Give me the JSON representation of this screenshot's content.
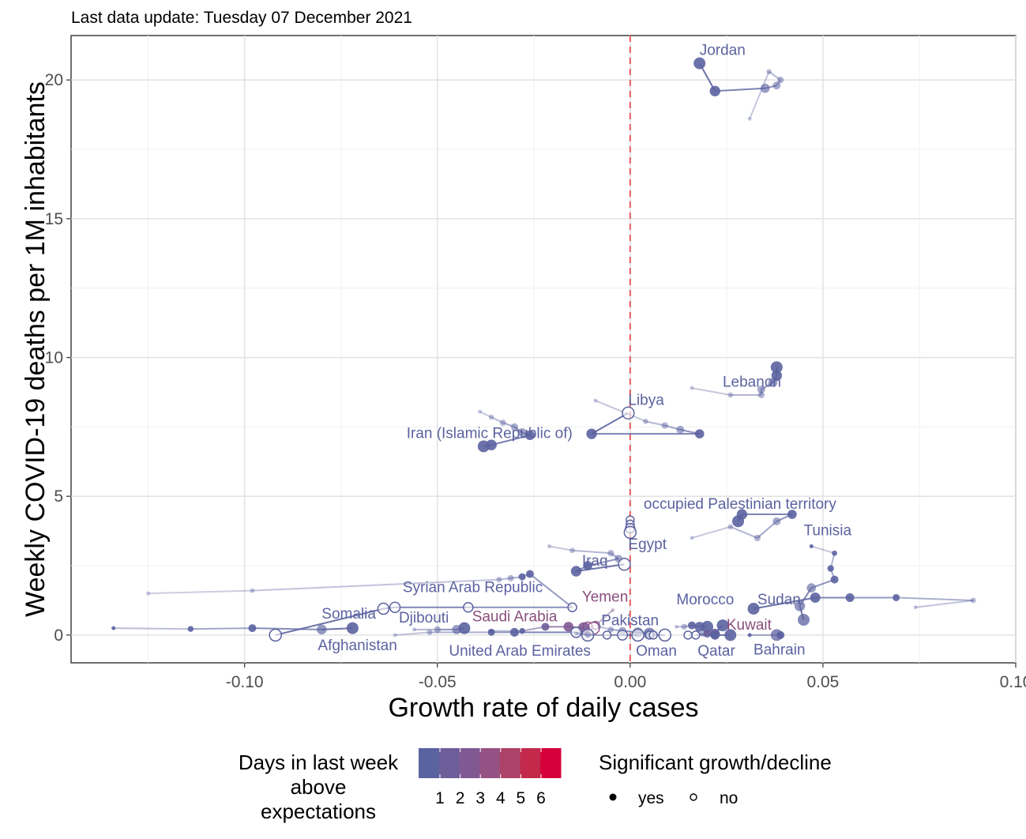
{
  "subtitle": "Last data update: Tuesday 07 December 2021",
  "chart_data": {
    "type": "scatter",
    "xlabel": "Growth rate of daily cases",
    "ylabel": "Weekly COVID-19 deaths per 1M inhabitants",
    "xlim": [
      -0.145,
      0.1
    ],
    "ylim": [
      -1.0,
      21.6
    ],
    "x_ticks": [
      -0.1,
      -0.05,
      0.0,
      0.05,
      0.1
    ],
    "x_tick_labels": [
      "-0.10",
      "-0.05",
      "0.00",
      "0.05",
      "0.10"
    ],
    "y_ticks": [
      0,
      5,
      10,
      15,
      20
    ],
    "y_tick_labels": [
      "0",
      "5",
      "10",
      "15",
      "20"
    ],
    "grid": true,
    "reference_line": {
      "x": 0,
      "style": "dashed",
      "color": "#e8696a"
    },
    "series": [
      {
        "name": "Jordan",
        "label_pos": [
          0.018,
          20.9
        ],
        "label_color": "#5b62a0",
        "points": [
          [
            0.031,
            18.6,
            0,
            0
          ],
          [
            0.036,
            20.3,
            0,
            0
          ],
          [
            0.039,
            20.0,
            0,
            0
          ],
          [
            0.038,
            19.8,
            0,
            0
          ],
          [
            0.035,
            19.7,
            0,
            0
          ],
          [
            0.022,
            19.6,
            0,
            1
          ],
          [
            0.018,
            20.6,
            0,
            1
          ]
        ]
      },
      {
        "name": "Lebanon",
        "label_pos": [
          0.024,
          8.95
        ],
        "label_color": "#5b62a0",
        "points": [
          [
            0.016,
            8.9,
            0,
            0
          ],
          [
            0.026,
            8.65,
            0,
            0
          ],
          [
            0.034,
            8.65,
            0,
            0
          ],
          [
            0.034,
            8.85,
            0,
            0
          ],
          [
            0.037,
            9.1,
            0,
            0
          ],
          [
            0.038,
            9.35,
            0,
            1
          ],
          [
            0.038,
            9.65,
            0,
            1
          ]
        ]
      },
      {
        "name": "Libya",
        "label_pos": [
          -0.0005,
          8.3
        ],
        "label_color": "#5b62a0",
        "points": [
          [
            -0.009,
            8.45,
            0,
            0
          ],
          [
            0.004,
            7.7,
            0,
            0
          ],
          [
            0.009,
            7.55,
            0,
            0
          ],
          [
            0.013,
            7.4,
            0,
            0
          ],
          [
            0.018,
            7.25,
            0,
            1
          ],
          [
            -0.01,
            7.25,
            0,
            1
          ],
          [
            -0.0005,
            8.0,
            0,
            2
          ]
        ]
      },
      {
        "name": "Iran (Islamic Republic of)",
        "label_pos": [
          -0.058,
          7.1
        ],
        "label_color": "#5b62a0",
        "points": [
          [
            -0.039,
            8.05,
            0,
            0
          ],
          [
            -0.036,
            7.85,
            0,
            0
          ],
          [
            -0.033,
            7.65,
            0,
            0
          ],
          [
            -0.03,
            7.5,
            0,
            0
          ],
          [
            -0.028,
            7.3,
            0,
            0
          ],
          [
            -0.026,
            7.2,
            0,
            1
          ],
          [
            -0.036,
            6.85,
            0,
            1
          ],
          [
            -0.038,
            6.8,
            0,
            1
          ]
        ]
      },
      {
        "name": "occupied Palestinian territory",
        "label_pos": [
          0.0035,
          4.55
        ],
        "label_color": "#5b62a0",
        "points": [
          [
            0.016,
            3.5,
            0,
            0
          ],
          [
            0.026,
            3.9,
            0,
            0
          ],
          [
            0.033,
            3.5,
            0,
            0
          ],
          [
            0.038,
            4.1,
            0,
            0
          ],
          [
            0.042,
            4.35,
            0,
            1
          ],
          [
            0.029,
            4.35,
            0,
            1
          ],
          [
            0.028,
            4.1,
            0,
            1
          ]
        ]
      },
      {
        "name": "Egypt",
        "label_pos": [
          -0.0005,
          3.1
        ],
        "label_color": "#5b62a0",
        "points": [
          [
            0.0,
            4.15,
            0,
            2
          ],
          [
            0.0,
            4.0,
            0,
            2
          ],
          [
            0.0,
            3.85,
            0,
            2
          ],
          [
            0.0,
            3.7,
            0,
            2
          ]
        ]
      },
      {
        "name": "Tunisia",
        "label_pos": [
          0.045,
          3.6
        ],
        "label_color": "#5b62a0",
        "points": [
          [
            0.047,
            3.2,
            0,
            1
          ],
          [
            0.053,
            2.95,
            0,
            1
          ],
          [
            0.052,
            2.4,
            0,
            1
          ],
          [
            0.053,
            2.0,
            0,
            1
          ],
          [
            0.047,
            1.7,
            0,
            0
          ],
          [
            0.044,
            1.05,
            0,
            0
          ],
          [
            0.045,
            0.55,
            0,
            0
          ]
        ]
      },
      {
        "name": "Iraq",
        "label_pos": [
          -0.0125,
          2.5
        ],
        "label_color": "#5b62a0",
        "points": [
          [
            -0.021,
            3.2,
            0,
            0
          ],
          [
            -0.015,
            3.05,
            0,
            0
          ],
          [
            -0.005,
            2.95,
            0,
            0
          ],
          [
            -0.003,
            2.75,
            0,
            0
          ],
          [
            -0.011,
            2.5,
            0,
            1
          ],
          [
            -0.014,
            2.3,
            0,
            1
          ],
          [
            -0.0015,
            2.55,
            0,
            2
          ]
        ]
      },
      {
        "name": "Syrian Arab Republic",
        "label_pos": [
          -0.059,
          1.55
        ],
        "label_color": "#5b62a0",
        "points": [
          [
            -0.125,
            1.5,
            0,
            0
          ],
          [
            -0.098,
            1.6,
            0,
            0
          ],
          [
            -0.034,
            2.0,
            0,
            0
          ],
          [
            -0.031,
            2.05,
            0,
            0
          ],
          [
            -0.028,
            2.1,
            0,
            1
          ],
          [
            -0.026,
            2.2,
            0,
            1
          ],
          [
            -0.015,
            1.0,
            0,
            2
          ],
          [
            -0.042,
            1.0,
            0,
            2
          ],
          [
            -0.061,
            1.0,
            0,
            2
          ],
          [
            -0.064,
            0.95,
            0,
            2
          ],
          [
            -0.092,
            0.0,
            0,
            2
          ]
        ]
      },
      {
        "name": "Yemen",
        "label_pos": [
          -0.0125,
          1.2
        ],
        "label_color": "#8a4f7d",
        "points": [
          [
            -0.0045,
            0.9,
            2,
            0
          ],
          [
            -0.009,
            0.35,
            2,
            2
          ],
          [
            -0.011,
            0.3,
            3,
            2
          ],
          [
            -0.0095,
            0.25,
            3,
            2
          ]
        ]
      },
      {
        "name": "Somalia",
        "label_pos": [
          -0.08,
          0.6
        ],
        "label_color": "#5b62a0",
        "points": [
          [
            -0.134,
            0.25,
            0,
            1
          ],
          [
            -0.114,
            0.22,
            0,
            1
          ],
          [
            -0.098,
            0.25,
            0,
            1
          ],
          [
            -0.08,
            0.2,
            0,
            0
          ],
          [
            -0.072,
            0.25,
            0,
            1
          ]
        ]
      },
      {
        "name": "Djibouti",
        "label_pos": [
          -0.06,
          0.45
        ],
        "label_color": "#5b62a0",
        "points": [
          [
            -0.056,
            0.2,
            0,
            0
          ],
          [
            -0.05,
            0.2,
            0,
            0
          ],
          [
            -0.045,
            0.2,
            0,
            0
          ],
          [
            -0.043,
            0.25,
            0,
            1
          ]
        ]
      },
      {
        "name": "Saudi Arabia",
        "label_pos": [
          -0.041,
          0.5
        ],
        "label_color": "#8a4f7d",
        "points": [
          [
            -0.036,
            0.15,
            0,
            1
          ],
          [
            -0.028,
            0.15,
            0,
            1
          ],
          [
            -0.022,
            0.3,
            1,
            1
          ],
          [
            -0.016,
            0.3,
            2,
            1
          ],
          [
            -0.012,
            0.25,
            2,
            1
          ]
        ]
      },
      {
        "name": "Pakistan",
        "label_pos": [
          -0.0075,
          0.35
        ],
        "label_color": "#5b62a0",
        "points": [
          [
            -0.008,
            0.3,
            0,
            0
          ],
          [
            -0.005,
            0.2,
            0,
            0
          ],
          [
            -0.002,
            0.15,
            0,
            0
          ],
          [
            0.002,
            0.1,
            0,
            0
          ],
          [
            0.005,
            0.05,
            0,
            0
          ]
        ]
      },
      {
        "name": "Morocco",
        "label_pos": [
          0.012,
          1.1
        ],
        "label_color": "#5b62a0",
        "points": [
          [
            0.012,
            0.3,
            0,
            0
          ],
          [
            0.014,
            0.3,
            0,
            0
          ],
          [
            0.016,
            0.35,
            0,
            1
          ],
          [
            0.018,
            0.3,
            0,
            1
          ],
          [
            0.02,
            0.3,
            0,
            1
          ]
        ]
      },
      {
        "name": "Sudan",
        "label_pos": [
          0.033,
          1.1
        ],
        "label_color": "#5b62a0",
        "points": [
          [
            0.074,
            1.0,
            0,
            0
          ],
          [
            0.089,
            1.25,
            0,
            0
          ],
          [
            0.069,
            1.35,
            0,
            1
          ],
          [
            0.057,
            1.35,
            0,
            1
          ],
          [
            0.048,
            1.35,
            0,
            1
          ],
          [
            0.032,
            0.95,
            0,
            1
          ]
        ]
      },
      {
        "name": "Kuwait",
        "label_pos": [
          0.025,
          0.2
        ],
        "label_color": "#8a4f7d",
        "points": [
          [
            0.018,
            0.05,
            0,
            0
          ],
          [
            0.019,
            0.05,
            0,
            0
          ],
          [
            0.02,
            0.05,
            1,
            1
          ],
          [
            0.022,
            0.05,
            1,
            1
          ],
          [
            0.024,
            0.35,
            0,
            1
          ]
        ]
      },
      {
        "name": "Afghanistan",
        "label_pos": [
          -0.081,
          -0.55
        ],
        "label_color": "#5b62a0",
        "points": [
          [
            -0.061,
            0.0,
            0,
            0
          ],
          [
            -0.052,
            0.1,
            0,
            0
          ],
          [
            -0.036,
            0.1,
            0,
            1
          ],
          [
            -0.03,
            0.1,
            0,
            1
          ],
          [
            -0.014,
            0.1,
            0,
            2
          ],
          [
            -0.011,
            0.0,
            0,
            2
          ]
        ]
      },
      {
        "name": "United Arab Emirates",
        "label_pos": [
          -0.047,
          -0.75
        ],
        "label_color": "#5b62a0",
        "points": [
          [
            -0.014,
            0.05,
            0,
            0
          ],
          [
            -0.011,
            0.0,
            0,
            0
          ],
          [
            -0.006,
            0.0,
            0,
            2
          ],
          [
            -0.002,
            0.0,
            0,
            2
          ],
          [
            0.002,
            0.0,
            0,
            2
          ]
        ]
      },
      {
        "name": "Oman",
        "label_pos": [
          0.0015,
          -0.75
        ],
        "label_color": "#5b62a0",
        "points": [
          [
            0.005,
            0.0,
            0,
            2
          ],
          [
            0.006,
            0.0,
            0,
            2
          ],
          [
            0.009,
            0.0,
            0,
            2
          ]
        ]
      },
      {
        "name": "Qatar",
        "label_pos": [
          0.0175,
          -0.75
        ],
        "label_color": "#5b62a0",
        "points": [
          [
            0.015,
            0.0,
            0,
            2
          ],
          [
            0.017,
            0.0,
            0,
            2
          ],
          [
            0.022,
            0.0,
            0,
            1
          ],
          [
            0.026,
            0.0,
            0,
            1
          ]
        ]
      },
      {
        "name": "Bahrain",
        "label_pos": [
          0.032,
          -0.7
        ],
        "label_color": "#5b62a0",
        "points": [
          [
            0.031,
            0.0,
            0,
            1
          ],
          [
            0.039,
            0.0,
            0,
            1
          ],
          [
            0.038,
            0.0,
            0,
            0
          ]
        ]
      }
    ]
  },
  "legend": {
    "color_title_lines": [
      "Days in last week",
      "above",
      "expectations"
    ],
    "color_labels": [
      "1",
      "2",
      "3",
      "4",
      "5",
      "6"
    ],
    "color_scale": [
      "#5b62a0",
      "#6d5e9a",
      "#805993",
      "#955183",
      "#ac4268",
      "#c2294b",
      "#d6003a"
    ],
    "shape_title": "Significant growth/decline",
    "shape_items": [
      {
        "label": "yes",
        "filled": true
      },
      {
        "label": "no",
        "filled": false
      }
    ]
  }
}
